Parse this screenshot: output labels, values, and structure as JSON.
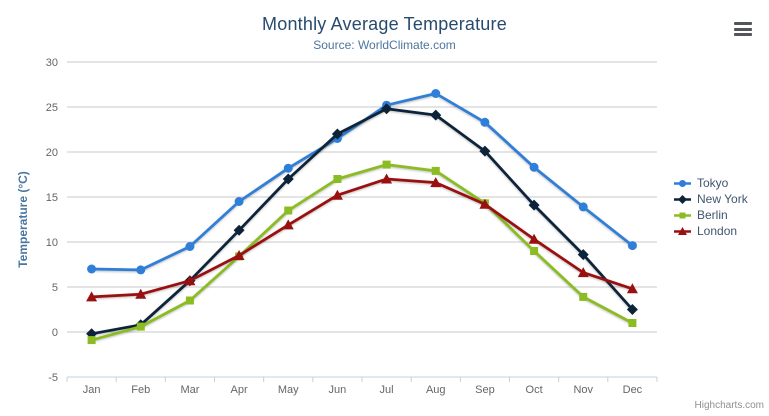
{
  "chart": {
    "credits": "Highcharts.com",
    "export_icon": "hamburger-menu-icon"
  },
  "chart_data": {
    "type": "line",
    "title": "Monthly Average Temperature",
    "subtitle": "Source: WorldClimate.com",
    "categories": [
      "Jan",
      "Feb",
      "Mar",
      "Apr",
      "May",
      "Jun",
      "Jul",
      "Aug",
      "Sep",
      "Oct",
      "Nov",
      "Dec"
    ],
    "xlabel": "",
    "ylabel": "Temperature (°C)",
    "ylim": [
      -5,
      30
    ],
    "yticks": [
      30,
      25,
      20,
      15,
      10,
      5,
      0,
      -5
    ],
    "grid": true,
    "legend_position": "right",
    "series": [
      {
        "name": "Tokyo",
        "marker": "circle",
        "color": "#2f7ed8",
        "values": [
          7.0,
          6.9,
          9.5,
          14.5,
          18.2,
          21.5,
          25.2,
          26.5,
          23.3,
          18.3,
          13.9,
          9.6
        ]
      },
      {
        "name": "New York",
        "marker": "diamond",
        "color": "#0d233a",
        "values": [
          -0.2,
          0.8,
          5.7,
          11.3,
          17.0,
          22.0,
          24.8,
          24.1,
          20.1,
          14.1,
          8.6,
          2.5
        ]
      },
      {
        "name": "Berlin",
        "marker": "square",
        "color": "#8bbc21",
        "values": [
          -0.9,
          0.6,
          3.5,
          8.4,
          13.5,
          17.0,
          18.6,
          17.9,
          14.3,
          9.0,
          3.9,
          1.0
        ]
      },
      {
        "name": "London",
        "marker": "triangle",
        "color": "#9a1010",
        "values": [
          3.9,
          4.2,
          5.7,
          8.5,
          11.9,
          15.2,
          17.0,
          16.6,
          14.2,
          10.3,
          6.6,
          4.8
        ]
      }
    ]
  },
  "style": {
    "grid_color": "#c8c8c8",
    "axis_line_color": "#c0d0e0",
    "axis_label_color": "#666666",
    "yaxis_title_color": "#4a76a0",
    "title_color": "#274b6d",
    "subtitle_color": "#4d759e"
  }
}
